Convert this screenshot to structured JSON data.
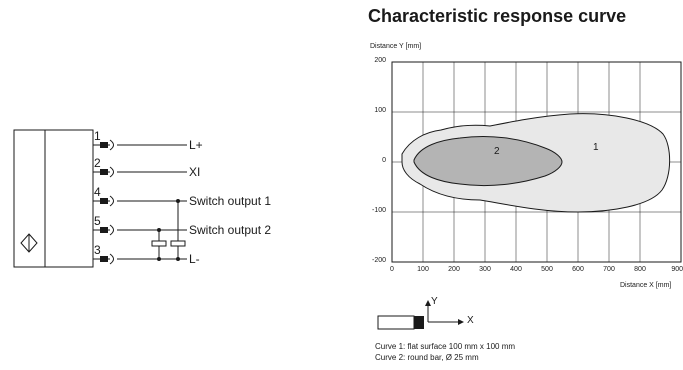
{
  "chart": {
    "title": "Characteristic response curve",
    "y_axis_label": "Distance Y [mm]",
    "x_axis_label": "Distance X [mm]",
    "x_ticks": [
      "0",
      "100",
      "200",
      "300",
      "400",
      "500",
      "600",
      "700",
      "800",
      "900"
    ],
    "y_ticks": [
      "200",
      "100",
      "0",
      "-100",
      "-200"
    ],
    "curve_labels": {
      "curve1": "1",
      "curve2": "2"
    }
  },
  "legend": {
    "line1": "Curve 1: flat surface 100 mm x 100 mm",
    "line2": "Curve 2: round bar, Ø 25 mm",
    "axis_y": "Y",
    "axis_x": "X"
  },
  "wiring": {
    "pins": [
      {
        "number": "1",
        "signal": "L+"
      },
      {
        "number": "2",
        "signal": "XI"
      },
      {
        "number": "4",
        "signal": "Switch output 1"
      },
      {
        "number": "5",
        "signal": "Switch output 2"
      },
      {
        "number": "3",
        "signal": "L-"
      }
    ]
  },
  "colors": {
    "curve1_fill": "#e8e8e8",
    "curve2_fill": "#b4b4b4",
    "line": "#1a1a1a"
  }
}
